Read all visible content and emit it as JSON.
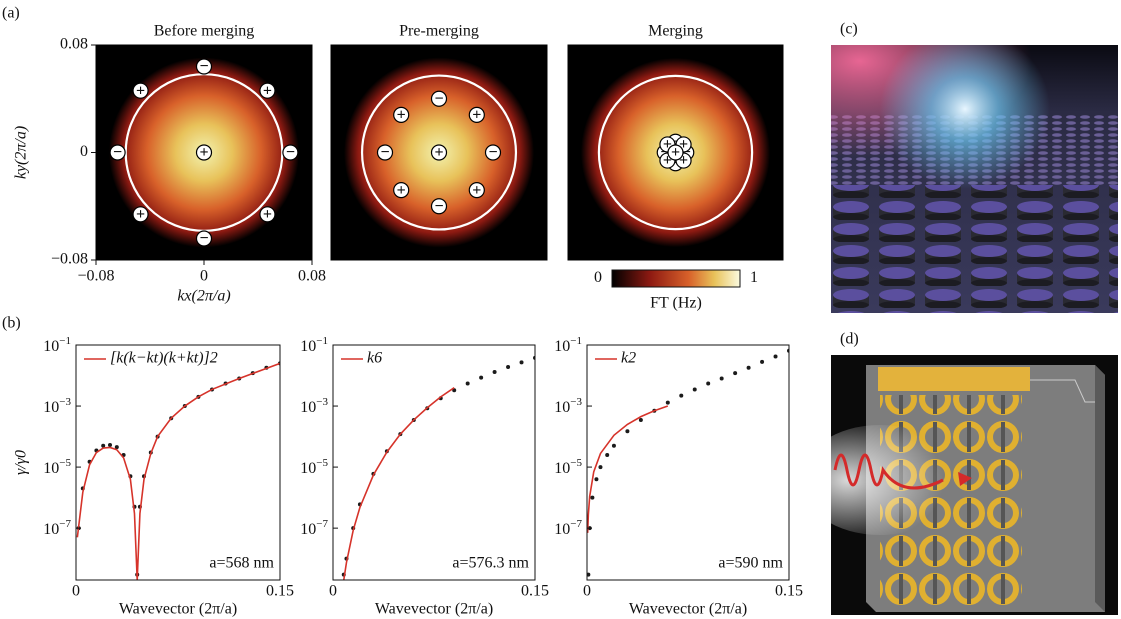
{
  "panel_labels": [
    "(a)",
    "(b)",
    "(c)",
    "(d)"
  ],
  "colorbar": {
    "label": "FT (Hz)",
    "lim": [
      0,
      1
    ],
    "ticks": [
      0,
      1
    ]
  },
  "chart_data": [
    {
      "type": "heatmap",
      "title": "Before merging",
      "xlabel": "kx(2π/a)",
      "ylabel": "ky(2π/a)",
      "xlim": [
        -0.08,
        0.08
      ],
      "ylim": [
        -0.08,
        0.08
      ],
      "xticks": [
        {
          "value": -0.08,
          "label": "−0.08"
        },
        0,
        0.08
      ],
      "yticks": [
        {
          "value": -0.08,
          "label": "−0.08"
        },
        0,
        0.08
      ],
      "circle_radius": 0.058,
      "charges": [
        {
          "x": 0,
          "y": 0,
          "sign": "+"
        },
        {
          "x": 0,
          "y": 0.064,
          "sign": "−"
        },
        {
          "x": 0,
          "y": -0.064,
          "sign": "−"
        },
        {
          "x": -0.064,
          "y": 0,
          "sign": "−"
        },
        {
          "x": 0.064,
          "y": 0,
          "sign": "−"
        },
        {
          "x": -0.047,
          "y": 0.046,
          "sign": "+"
        },
        {
          "x": 0.047,
          "y": 0.046,
          "sign": "+"
        },
        {
          "x": -0.047,
          "y": -0.046,
          "sign": "+"
        },
        {
          "x": 0.047,
          "y": -0.046,
          "sign": "+"
        }
      ]
    },
    {
      "type": "heatmap",
      "title": "Pre-merging",
      "xlim": [
        -0.08,
        0.08
      ],
      "ylim": [
        -0.08,
        0.08
      ],
      "circle_radius": 0.057,
      "charges": [
        {
          "x": 0,
          "y": 0,
          "sign": "+"
        },
        {
          "x": 0,
          "y": 0.04,
          "sign": "−"
        },
        {
          "x": 0,
          "y": -0.04,
          "sign": "−"
        },
        {
          "x": -0.04,
          "y": 0,
          "sign": "−"
        },
        {
          "x": 0.04,
          "y": 0,
          "sign": "−"
        },
        {
          "x": -0.028,
          "y": 0.028,
          "sign": "+"
        },
        {
          "x": 0.028,
          "y": 0.028,
          "sign": "+"
        },
        {
          "x": -0.028,
          "y": -0.028,
          "sign": "+"
        },
        {
          "x": 0.028,
          "y": -0.028,
          "sign": "+"
        }
      ]
    },
    {
      "type": "heatmap",
      "title": "Merging",
      "xlim": [
        -0.08,
        0.08
      ],
      "ylim": [
        -0.08,
        0.08
      ],
      "circle_radius": 0.057,
      "charges": [
        {
          "x": 0,
          "y": 0.008,
          "sign": "−"
        },
        {
          "x": 0,
          "y": -0.008,
          "sign": "−"
        },
        {
          "x": -0.008,
          "y": 0,
          "sign": "−"
        },
        {
          "x": 0.008,
          "y": 0,
          "sign": "−"
        },
        {
          "x": -0.006,
          "y": 0.006,
          "sign": "+"
        },
        {
          "x": 0.006,
          "y": 0.006,
          "sign": "+"
        },
        {
          "x": -0.006,
          "y": -0.006,
          "sign": "+"
        },
        {
          "x": 0.006,
          "y": -0.006,
          "sign": "+"
        },
        {
          "x": 0,
          "y": 0,
          "sign": "+"
        }
      ]
    },
    {
      "type": "line",
      "log_y": true,
      "xlabel": "Wavevector (2π/a)",
      "ylabel": "γ/γ0",
      "annotation": "a=568 nm",
      "xlim": [
        0,
        0.15
      ],
      "ylim": [
        2e-09,
        0.1
      ],
      "xticks": [
        0,
        0.15
      ],
      "yticks": [
        {
          "value": 0.1,
          "label": "10−1"
        },
        {
          "value": 0.001,
          "label": "10−3"
        },
        {
          "value": 1e-05,
          "label": "10−5"
        },
        {
          "value": 1e-07,
          "label": "10−7"
        }
      ],
      "series": [
        {
          "style": "dots",
          "color": "#1b1b1b",
          "x": [
            0.002,
            0.005,
            0.01,
            0.015,
            0.02,
            0.025,
            0.03,
            0.035,
            0.04,
            0.043,
            0.045,
            0.047,
            0.05,
            0.055,
            0.06,
            0.07,
            0.08,
            0.09,
            0.1,
            0.11,
            0.12,
            0.13,
            0.14,
            0.15
          ],
          "values": [
            1e-07,
            2e-06,
            1.5e-05,
            3.5e-05,
            5e-05,
            5.3e-05,
            4.5e-05,
            2.5e-05,
            5e-06,
            5e-07,
            3e-09,
            5e-07,
            5e-06,
            3e-05,
            0.0001,
            0.0004,
            0.001,
            0.002,
            0.0035,
            0.0055,
            0.008,
            0.012,
            0.018,
            0.025
          ]
        },
        {
          "style": "line",
          "name": "[k(k−kt)(k+kt)]2",
          "color": "#d6332a",
          "x": [
            0.001,
            0.005,
            0.01,
            0.015,
            0.02,
            0.025,
            0.03,
            0.035,
            0.04,
            0.043,
            0.045,
            0.047,
            0.05,
            0.055,
            0.06,
            0.07,
            0.08,
            0.09,
            0.1,
            0.12,
            0.15
          ],
          "values": [
            5e-08,
            1.5e-06,
            1.2e-05,
            3e-05,
            4.2e-05,
            4.4e-05,
            3.7e-05,
            2e-05,
            4e-06,
            3e-07,
            2e-09,
            3e-07,
            4e-06,
            2.8e-05,
            0.0001,
            0.0004,
            0.001,
            0.002,
            0.0035,
            0.008,
            0.025
          ]
        }
      ]
    },
    {
      "type": "line",
      "log_y": true,
      "xlabel": "Wavevector (2π/a)",
      "annotation": "a=576.3 nm",
      "xlim": [
        0,
        0.15
      ],
      "ylim": [
        2e-09,
        0.1
      ],
      "xticks": [
        0,
        0.15
      ],
      "yticks": [
        {
          "value": 0.1,
          "label": "10−1"
        },
        {
          "value": 0.001,
          "label": "10−3"
        },
        {
          "value": 1e-05,
          "label": "10−5"
        },
        {
          "value": 1e-07,
          "label": "10−7"
        }
      ],
      "series": [
        {
          "style": "dots",
          "color": "#1b1b1b",
          "x": [
            0.008,
            0.01,
            0.015,
            0.02,
            0.03,
            0.04,
            0.05,
            0.06,
            0.07,
            0.08,
            0.09,
            0.1,
            0.11,
            0.12,
            0.13,
            0.14,
            0.15
          ],
          "values": [
            3e-09,
            1e-08,
            1e-07,
            6e-07,
            6e-06,
            3.3e-05,
            0.00012,
            0.00035,
            0.00085,
            0.0018,
            0.0033,
            0.0055,
            0.0085,
            0.013,
            0.019,
            0.027,
            0.038
          ]
        },
        {
          "style": "line",
          "name": "k6",
          "color": "#d6332a",
          "x": [
            0.008,
            0.01,
            0.015,
            0.02,
            0.03,
            0.04,
            0.05,
            0.06,
            0.07,
            0.08,
            0.09
          ],
          "values": [
            2e-09,
            7.5e-09,
            8.5e-08,
            4.8e-07,
            5.5e-06,
            3.1e-05,
            0.00012,
            0.00035,
            0.00088,
            0.002,
            0.004
          ]
        }
      ]
    },
    {
      "type": "line",
      "log_y": true,
      "xlabel": "Wavevector (2π/a)",
      "annotation": "a=590 nm",
      "xlim": [
        0,
        0.15
      ],
      "ylim": [
        2e-09,
        0.1
      ],
      "xticks": [
        0,
        0.15
      ],
      "yticks": [
        {
          "value": 0.1,
          "label": "10−1"
        },
        {
          "value": 0.001,
          "label": "10−3"
        },
        {
          "value": 1e-05,
          "label": "10−5"
        },
        {
          "value": 1e-07,
          "label": "10−7"
        }
      ],
      "series": [
        {
          "style": "dots",
          "color": "#1b1b1b",
          "x": [
            0.001,
            0.002,
            0.004,
            0.007,
            0.01,
            0.015,
            0.02,
            0.03,
            0.04,
            0.05,
            0.06,
            0.07,
            0.08,
            0.09,
            0.1,
            0.11,
            0.12,
            0.13,
            0.14,
            0.15
          ],
          "values": [
            3e-09,
            1e-07,
            1e-06,
            4e-06,
            1e-05,
            2.5e-05,
            5e-05,
            0.00015,
            0.00035,
            0.0007,
            0.0013,
            0.0022,
            0.0035,
            0.0055,
            0.008,
            0.012,
            0.018,
            0.028,
            0.042,
            0.065
          ]
        },
        {
          "style": "line",
          "name": "k2",
          "color": "#d6332a",
          "x": [
            0.0005,
            0.001,
            0.002,
            0.005,
            0.01,
            0.02,
            0.03,
            0.04,
            0.05,
            0.06
          ],
          "values": [
            7e-08,
            2.8e-07,
            1.1e-06,
            7e-06,
            2.8e-05,
            0.00011,
            0.00025,
            0.00045,
            0.0007,
            0.001
          ]
        }
      ]
    }
  ]
}
